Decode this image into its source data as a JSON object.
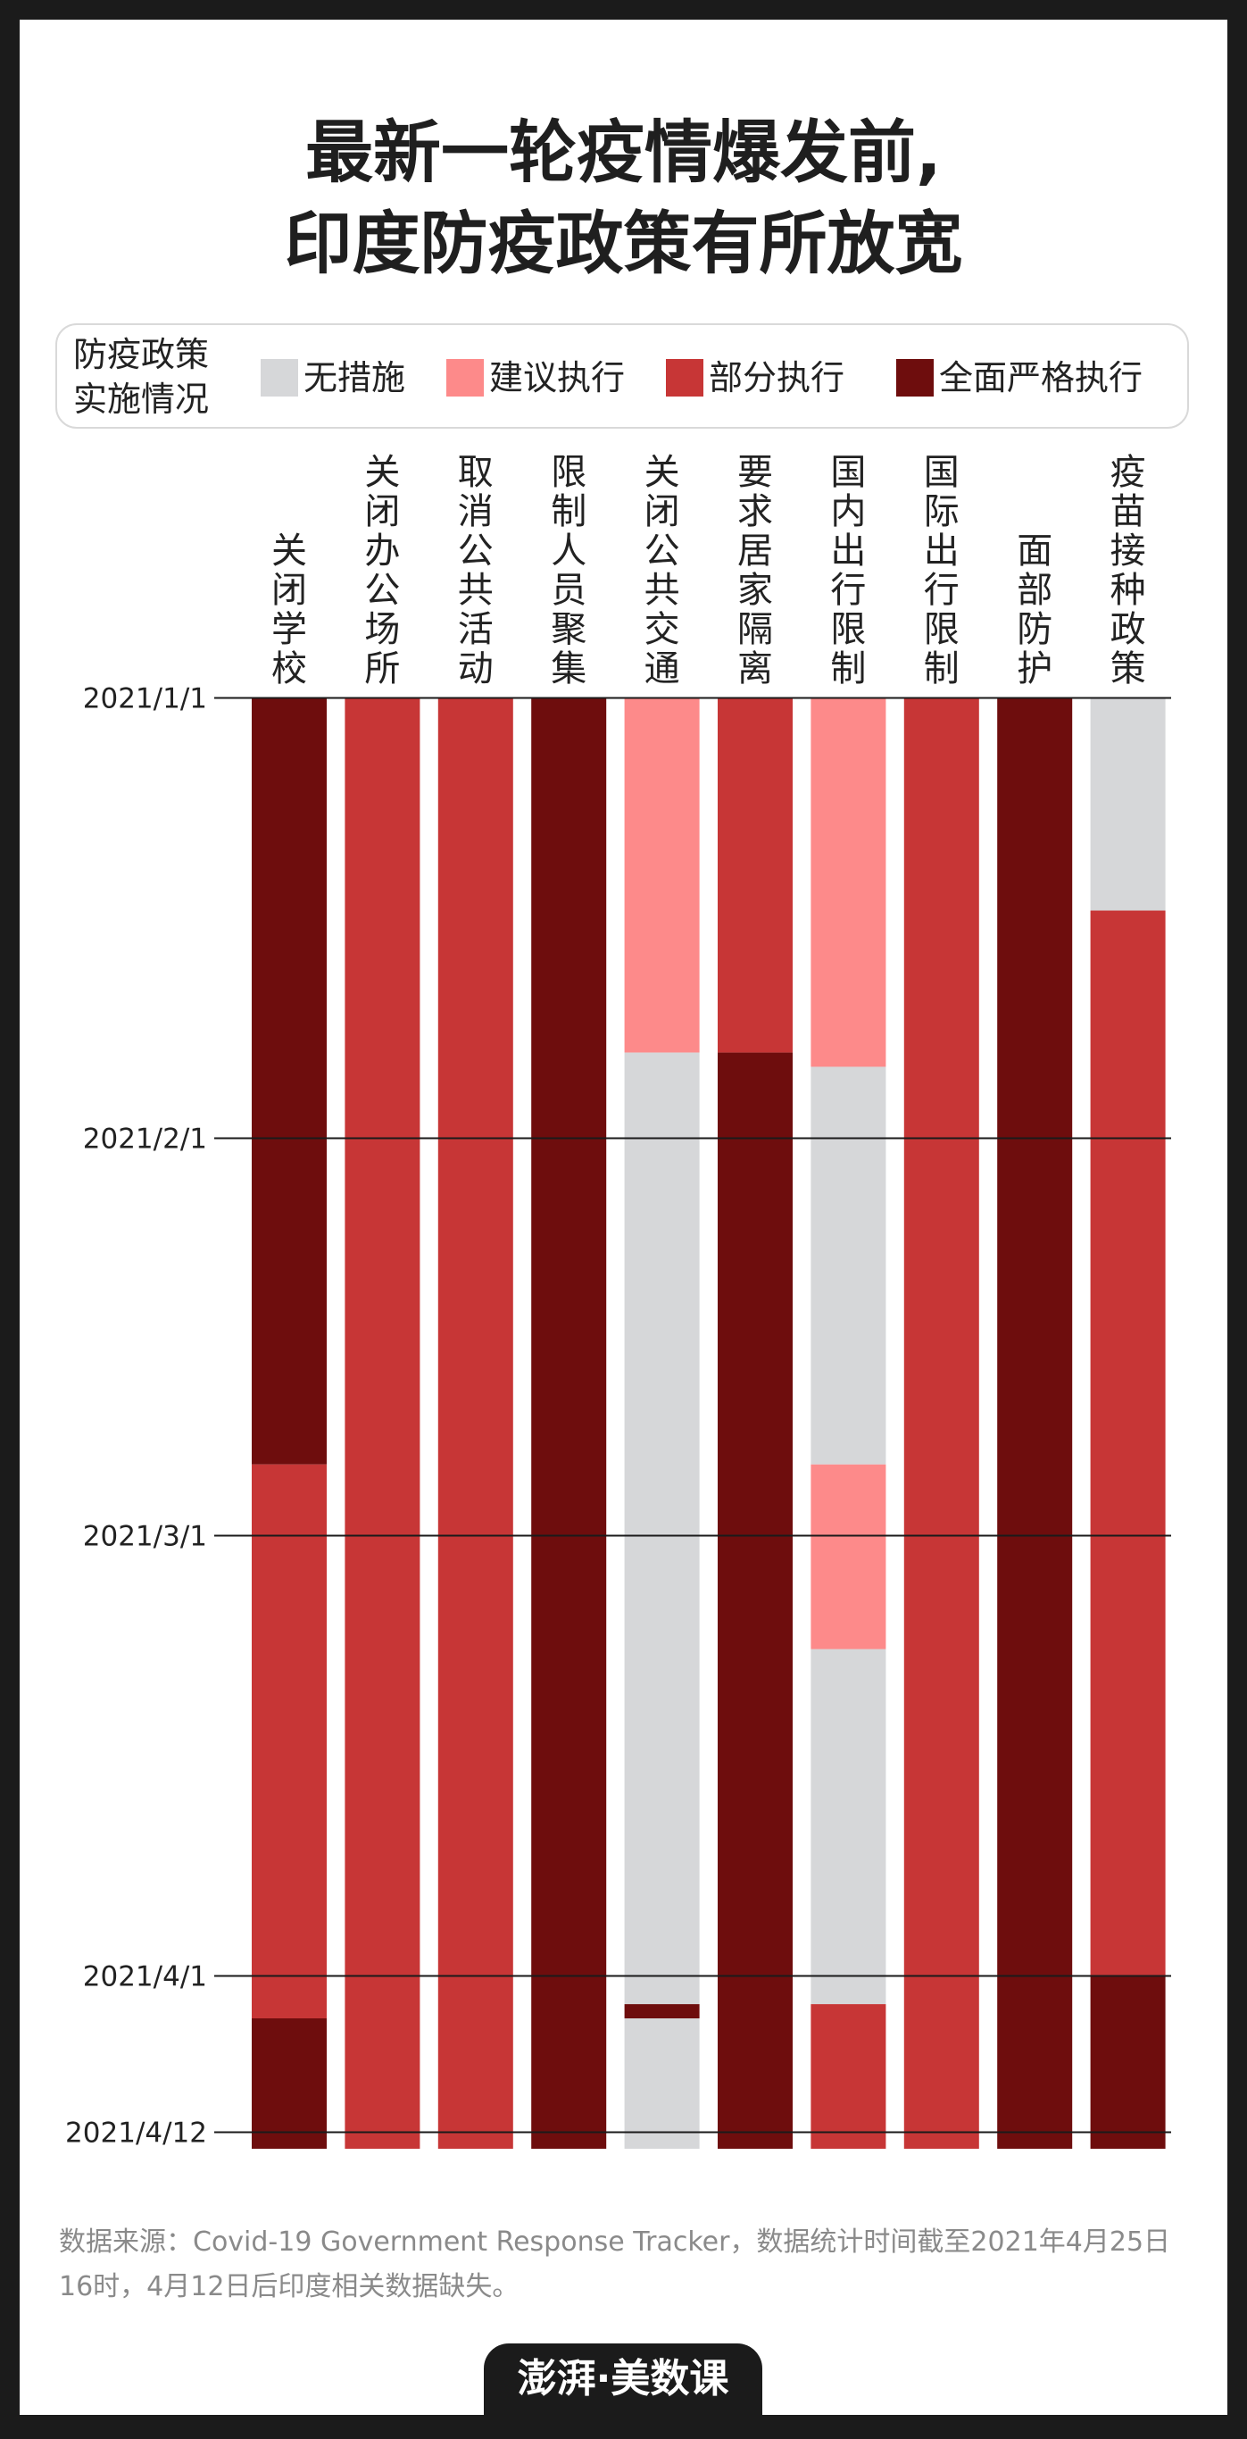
{
  "title_lines": [
    "最新一轮疫情爆发前,",
    "印度防疫政策有所放宽"
  ],
  "legend": {
    "title_lines": [
      "防疫政策",
      "实施情况"
    ],
    "items": [
      {
        "label": "无措施",
        "color": "#d6d7d9"
      },
      {
        "label": "建议执行",
        "color": "#fd8a8a"
      },
      {
        "label": "部分执行",
        "color": "#c73636"
      },
      {
        "label": "全面严格执行",
        "color": "#6e0d0d"
      }
    ]
  },
  "chart_data": {
    "type": "bar",
    "orientation": "vertical-timeline",
    "date_range": [
      "2021-01-01",
      "2021-04-12"
    ],
    "date_ticks": [
      {
        "label": "2021/1/1",
        "date": "2021-01-01"
      },
      {
        "label": "2021/2/1",
        "date": "2021-02-01"
      },
      {
        "label": "2021/3/1",
        "date": "2021-03-01"
      },
      {
        "label": "2021/4/1",
        "date": "2021-04-01"
      },
      {
        "label": "2021/4/12",
        "date": "2021-04-12"
      }
    ],
    "levels": [
      "无措施",
      "建议执行",
      "部分执行",
      "全面严格执行"
    ],
    "categories": [
      {
        "name": "关闭学校",
        "segments": [
          {
            "start": "2021-01-01",
            "end": "2021-02-24",
            "level": "全面严格执行"
          },
          {
            "start": "2021-02-24",
            "end": "2021-04-04",
            "level": "部分执行"
          },
          {
            "start": "2021-04-04",
            "end": "2021-04-12",
            "level": "全面严格执行"
          }
        ]
      },
      {
        "name": "关闭办公场所",
        "segments": [
          {
            "start": "2021-01-01",
            "end": "2021-04-12",
            "level": "部分执行"
          }
        ]
      },
      {
        "name": "取消公共活动",
        "segments": [
          {
            "start": "2021-01-01",
            "end": "2021-04-12",
            "level": "部分执行"
          }
        ]
      },
      {
        "name": "限制人员聚集",
        "segments": [
          {
            "start": "2021-01-01",
            "end": "2021-04-12",
            "level": "全面严格执行"
          }
        ]
      },
      {
        "name": "关闭公共交通",
        "segments": [
          {
            "start": "2021-01-01",
            "end": "2021-01-26",
            "level": "建议执行"
          },
          {
            "start": "2021-01-26",
            "end": "2021-04-03",
            "level": "无措施"
          },
          {
            "start": "2021-04-03",
            "end": "2021-04-04",
            "level": "全面严格执行"
          },
          {
            "start": "2021-04-04",
            "end": "2021-04-12",
            "level": "无措施"
          }
        ]
      },
      {
        "name": "要求居家隔离",
        "segments": [
          {
            "start": "2021-01-01",
            "end": "2021-01-26",
            "level": "部分执行"
          },
          {
            "start": "2021-01-26",
            "end": "2021-04-12",
            "level": "全面严格执行"
          }
        ]
      },
      {
        "name": "国内出行限制",
        "segments": [
          {
            "start": "2021-01-01",
            "end": "2021-01-27",
            "level": "建议执行"
          },
          {
            "start": "2021-01-27",
            "end": "2021-02-24",
            "level": "无措施"
          },
          {
            "start": "2021-02-24",
            "end": "2021-03-09",
            "level": "建议执行"
          },
          {
            "start": "2021-03-09",
            "end": "2021-04-03",
            "level": "无措施"
          },
          {
            "start": "2021-04-03",
            "end": "2021-04-12",
            "level": "部分执行"
          }
        ]
      },
      {
        "name": "国际出行限制",
        "segments": [
          {
            "start": "2021-01-01",
            "end": "2021-04-12",
            "level": "部分执行"
          }
        ]
      },
      {
        "name": "面部防护",
        "segments": [
          {
            "start": "2021-01-01",
            "end": "2021-04-12",
            "level": "全面严格执行"
          }
        ]
      },
      {
        "name": "疫苗接种政策",
        "segments": [
          {
            "start": "2021-01-01",
            "end": "2021-01-16",
            "level": "无措施"
          },
          {
            "start": "2021-01-16",
            "end": "2021-04-01",
            "level": "部分执行"
          },
          {
            "start": "2021-04-01",
            "end": "2021-04-12",
            "level": "全面严格执行"
          }
        ]
      }
    ]
  },
  "source_text": "数据来源：Covid-19 Government Response Tracker，数据统计时间截至2021年4月25日16时，4月12日后印度相关数据缺失。",
  "logo_text": "澎湃·美数课"
}
